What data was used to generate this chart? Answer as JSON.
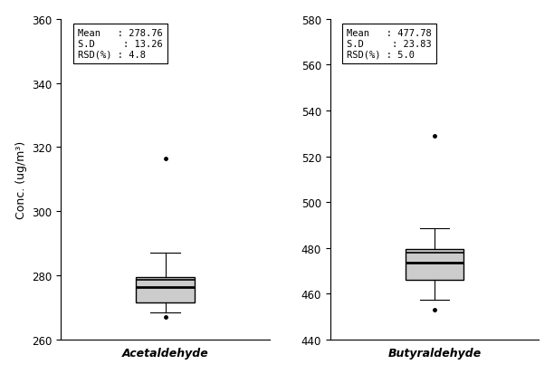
{
  "acetaldehyde": {
    "label": "Acetaldehyde",
    "mean": 278.76,
    "sd": 13.26,
    "rsd": "4.8",
    "q1": 271.5,
    "median": 276.5,
    "q3": 279.5,
    "whisker_low": 268.5,
    "whisker_high": 287.0,
    "outlier_low": 267.0,
    "outlier_high": 316.5,
    "ylim": [
      260,
      360
    ],
    "yticks": [
      260,
      280,
      300,
      320,
      340,
      360
    ]
  },
  "butyraldehyde": {
    "label": "Butyraldehyde",
    "mean": 477.78,
    "sd": 23.83,
    "rsd": "5.0",
    "q1": 466.0,
    "median": 473.5,
    "q3": 479.5,
    "whisker_low": 457.5,
    "whisker_high": 488.5,
    "outlier_low": 453.0,
    "outlier_high": 529.0,
    "ylim": [
      440,
      580
    ],
    "yticks": [
      440,
      460,
      480,
      500,
      520,
      540,
      560,
      580
    ]
  },
  "ylabel": "Conc. (ug/m³)",
  "box_color": "#cccccc",
  "background_color": "#ffffff",
  "figsize": [
    6.12,
    4.14
  ],
  "dpi": 100
}
